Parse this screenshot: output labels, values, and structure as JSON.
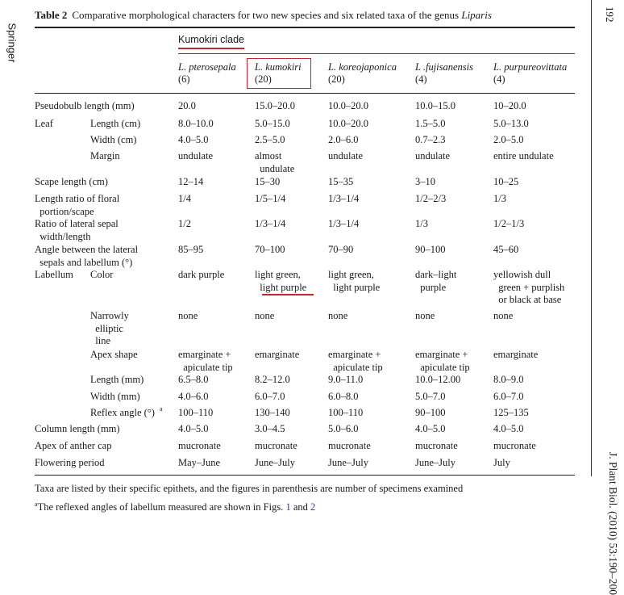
{
  "side": {
    "publisher": "Springer",
    "page_number": "192",
    "journal": "J. Plant Biol. (2010) 53:190–200"
  },
  "title": {
    "label": "Table 2",
    "text": "Comparative morphological characters for two new species and six related taxa of the genus",
    "genus": "Liparis"
  },
  "clade": "Kumokiri clade",
  "columns": [
    {
      "name": "L. pterosepala",
      "n": "(6)"
    },
    {
      "name": "L. kumokiri",
      "n": "(20)"
    },
    {
      "name": "L. koreojaponica",
      "n": "(20)"
    },
    {
      "name": "L .fujisanensis",
      "n": "(4)"
    },
    {
      "name": "L. purpureovittata",
      "n": "(4)"
    }
  ],
  "rows": [
    {
      "label": "Pseudobulb length (mm)",
      "sub": "",
      "values": [
        "20.0",
        "15.0–20.0",
        "10.0–20.0",
        "10.0–15.0",
        "10–20.0"
      ]
    },
    {
      "label": "Leaf",
      "sub": "Length (cm)",
      "values": [
        "8.0–10.0",
        "5.0–15.0",
        "10.0–20.0",
        "1.5–5.0",
        "5.0–13.0"
      ]
    },
    {
      "label": "",
      "sub": "Width (cm)",
      "values": [
        "4.0–5.0",
        "2.5–5.0",
        "2.0–6.0",
        "0.7–2.3",
        "2.0–5.0"
      ]
    },
    {
      "label": "",
      "sub": "Margin",
      "values": [
        "undulate",
        "almost\n  undulate",
        "undulate",
        "undulate",
        "entire undulate"
      ]
    },
    {
      "label": "Scape length (cm)",
      "sub": "",
      "values": [
        "12–14",
        "15–30",
        "15–35",
        "3–10",
        "10–25"
      ]
    },
    {
      "label": "Length ratio of floral\n  portion/scape",
      "sub": "",
      "values": [
        "1/4",
        "1/5–1/4",
        "1/3–1/4",
        "1/2–2/3",
        "1/3"
      ]
    },
    {
      "label": "Ratio of lateral sepal\n  width/length",
      "sub": "",
      "values": [
        "1/2",
        "1/3–1/4",
        "1/3–1/4",
        "1/3",
        "1/2–1/3"
      ]
    },
    {
      "label": "Angle between the lateral\n  sepals and labellum (°)",
      "sub": "",
      "values": [
        "85–95",
        "70–100",
        "70–90",
        "90–100",
        "45–60"
      ]
    },
    {
      "label": "Labellum",
      "sub": "Color",
      "values": [
        "dark purple",
        "light green,\n  light purple",
        "light green,\n  light purple",
        "dark–light\n  purple",
        "yellowish dull\n  green + purplish\n  or black at base"
      ]
    },
    {
      "label": "",
      "sub": "Narrowly\n  elliptic\n  line",
      "values": [
        "none",
        "none",
        "none",
        "none",
        "none"
      ]
    },
    {
      "label": "",
      "sub": "Apex shape",
      "values": [
        "emarginate +\n  apiculate tip",
        "emarginate",
        "emarginate +\n  apiculate tip",
        "emarginate +\n  apiculate tip",
        "emarginate"
      ]
    },
    {
      "label": "",
      "sub": "Length (mm)",
      "values": [
        "6.5–8.0",
        "8.2–12.0",
        "9.0–11.0",
        "10.0–12.00",
        "8.0–9.0"
      ]
    },
    {
      "label": "",
      "sub": "Width (mm)",
      "values": [
        "4.0–6.0",
        "6.0–7.0",
        "6.0–8.0",
        "5.0–7.0",
        "6.0–7.0"
      ]
    },
    {
      "label": "",
      "sub": "Reflex angle (°)",
      "values": [
        "100–110",
        "130–140",
        "100–110",
        "90–100",
        "125–135"
      ]
    },
    {
      "label": "Column length (mm)",
      "sub": "",
      "values": [
        "4.0–5.0",
        "3.0–4.5",
        "5.0–6.0",
        "4.0–5.0",
        "4.0–5.0"
      ]
    },
    {
      "label": "Apex of anther cap",
      "sub": "",
      "values": [
        "mucronate",
        "mucronate",
        "mucronate",
        "mucronate",
        "mucronate"
      ]
    },
    {
      "label": "Flowering period",
      "sub": "",
      "values": [
        "May–June",
        "June–July",
        "June–July",
        "June–July",
        "July"
      ]
    }
  ],
  "footnotes": {
    "note1": "Taxa are listed by their specific epithets, and the figures in parenthesis are number of specimens examined",
    "note2_mark": "a",
    "note2_text": "The reflexed angles of labellum measured are shown in Figs.",
    "fig1": "1",
    "and": "and",
    "fig2": "2"
  },
  "colors": {
    "highlight": "#c0262d",
    "link": "#2a4aa0"
  }
}
